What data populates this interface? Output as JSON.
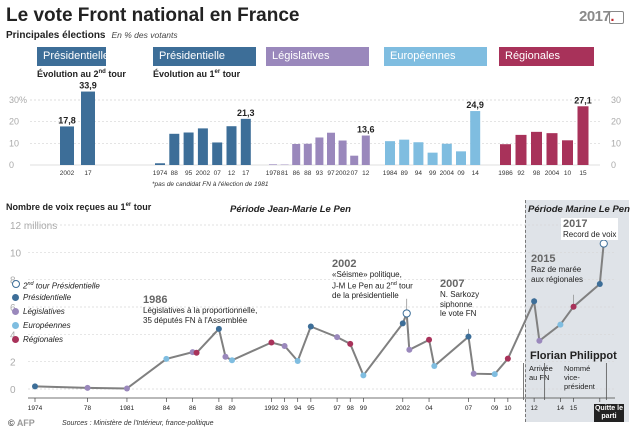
{
  "header": {
    "title": "Le vote Front national en France",
    "subtitle": "Principales élections",
    "unit": "En % des votants",
    "logo": {
      "year": "2017",
      "mark": "."
    }
  },
  "colors": {
    "presidentielle": "#3d6e98",
    "legislatives": "#9a88bc",
    "europeennes": "#7fbde0",
    "regionales": "#a8325a",
    "line": "#777777"
  },
  "panels": {
    "p2": {
      "header": "Présidentielle",
      "sub_a": "Évolution au 2",
      "sub_sup": "nd",
      "sub_b": " tour"
    },
    "p1": {
      "header": "Présidentielle",
      "sub_a": "Évolution au 1",
      "sub_sup": "er",
      "sub_b": " tour"
    },
    "leg": {
      "header": "Législatives"
    },
    "eur": {
      "header": "Européennes"
    },
    "reg": {
      "header": "Régionales"
    },
    "axis_left": [
      "30%",
      "20",
      "10",
      "0"
    ],
    "axis_right": [
      "30",
      "20",
      "10",
      "0"
    ],
    "note": "*pas de candidat FN à l'élection de 1981"
  },
  "lower": {
    "title_a": "Nombre de voix reçues au 1",
    "title_sup": "er",
    "title_b": " tour",
    "period1": "Période Jean-Marie Le Pen",
    "period2": "Période Marine Le Pen",
    "legend": [
      {
        "key": "p2",
        "label": " tour Présidentielle",
        "prefix": "2",
        "sup": "nd"
      },
      {
        "key": "p1",
        "label": "Présidentielle"
      },
      {
        "key": "leg",
        "label": "Législatives"
      },
      {
        "key": "eur",
        "label": "Européennes"
      },
      {
        "key": "reg",
        "label": "Régionales"
      }
    ],
    "annotations": {
      "a1986": {
        "year": "1986",
        "l1": "Législatives à la proportionnelle,",
        "l2": "35 députés FN à l'Assemblée"
      },
      "a2002": {
        "year": "2002",
        "l1": "«Séisme» politique,",
        "l2a": "J-M Le Pen au 2",
        "l2sup": "nd",
        "l2b": " tour",
        "l3": "de la présidentielle"
      },
      "a2007": {
        "year": "2007",
        "l1": "N. Sarkozy",
        "l2": "siphonne",
        "l3": "le vote FN"
      },
      "a2015": {
        "year": "2015",
        "l1": "Raz de marée",
        "l2": "aux régionales"
      },
      "a2017": {
        "year": "2017",
        "l1": "Record de voix"
      }
    },
    "philippot": "Florian Philippot",
    "arrivee": "Arrivée au FN",
    "vice": "Nommé vice-président",
    "quitte": "Quitte le parti"
  },
  "footer": {
    "logo_a": "© ",
    "logo_b": "AFP",
    "sources": "Sources : Ministère de l'Intérieur, france-politique"
  },
  "chart_data": [
    {
      "type": "bar",
      "title": "Présidentielle — Évolution au 2nd tour",
      "categories": [
        "2002",
        "17"
      ],
      "values": [
        17.8,
        33.9
      ],
      "value_labels": [
        "17,8",
        "33,9"
      ],
      "ylim": [
        0,
        35
      ],
      "ylabel": "En % des votants"
    },
    {
      "type": "bar",
      "title": "Présidentielle — Évolution au 1er tour",
      "categories": [
        "1974",
        "88",
        "95",
        "2002",
        "07",
        "12",
        "17"
      ],
      "values": [
        0.8,
        14.4,
        15.0,
        16.9,
        10.4,
        17.9,
        21.3
      ],
      "value_labels": [
        "",
        "",
        "",
        "",
        "",
        "",
        "21,3"
      ],
      "ylim": [
        0,
        35
      ]
    },
    {
      "type": "bar",
      "title": "Législatives",
      "categories": [
        "1978",
        "81",
        "86",
        "88",
        "93",
        "97",
        "2002",
        "07",
        "12"
      ],
      "values": [
        0.3,
        0.2,
        9.7,
        9.8,
        12.7,
        14.9,
        11.3,
        4.3,
        13.6
      ],
      "value_labels": [
        "",
        "",
        "",
        "",
        "",
        "",
        "",
        "",
        "13,6"
      ],
      "ylim": [
        0,
        35
      ]
    },
    {
      "type": "bar",
      "title": "Européennes",
      "categories": [
        "1984",
        "89",
        "94",
        "99",
        "2004",
        "09",
        "14"
      ],
      "values": [
        11.0,
        11.7,
        10.5,
        5.7,
        9.8,
        6.3,
        24.9
      ],
      "value_labels": [
        "",
        "",
        "",
        "",
        "",
        "",
        "24,9"
      ],
      "ylim": [
        0,
        35
      ]
    },
    {
      "type": "bar",
      "title": "Régionales",
      "categories": [
        "1986",
        "92",
        "98",
        "2004",
        "10",
        "15"
      ],
      "values": [
        9.6,
        13.9,
        15.3,
        14.7,
        11.4,
        27.1
      ],
      "value_labels": [
        "",
        "",
        "",
        "",
        "",
        "27,1"
      ],
      "ylim": [
        0,
        35
      ]
    },
    {
      "type": "line",
      "title": "Nombre de voix reçues au 1er tour",
      "ylabel": "millions",
      "ylim": [
        0,
        12
      ],
      "yticks": [
        "12 millions",
        "10",
        "8",
        "6",
        "4",
        "2",
        "0"
      ],
      "xlim": [
        1974,
        2017.7
      ],
      "xticks": [
        [
          1974,
          "1974"
        ],
        [
          1978,
          "78"
        ],
        [
          1981,
          "1981"
        ],
        [
          1984,
          "84"
        ],
        [
          1986,
          "86"
        ],
        [
          1988,
          "88"
        ],
        [
          1989,
          "89"
        ],
        [
          1992,
          "1992"
        ],
        [
          1993,
          "93"
        ],
        [
          1994,
          "94"
        ],
        [
          1995,
          "95"
        ],
        [
          1997,
          "97"
        ],
        [
          1998,
          "98"
        ],
        [
          1999,
          "99"
        ],
        [
          2002,
          "2002"
        ],
        [
          2004,
          "04"
        ],
        [
          2007,
          "07"
        ],
        [
          2009,
          "09"
        ],
        [
          2010,
          "10"
        ],
        [
          2012,
          "12"
        ],
        [
          2014,
          "14"
        ],
        [
          2015,
          "15"
        ],
        [
          2017,
          "17"
        ]
      ],
      "points": [
        {
          "x": 1974,
          "y": 0.19,
          "type": "p1"
        },
        {
          "x": 1978,
          "y": 0.08,
          "type": "leg"
        },
        {
          "x": 1981,
          "y": 0.04,
          "type": "leg"
        },
        {
          "x": 1984,
          "y": 2.2,
          "type": "eur"
        },
        {
          "x": 1986,
          "y": 2.7,
          "type": "leg"
        },
        {
          "x": 1986.3,
          "y": 2.65,
          "type": "reg"
        },
        {
          "x": 1988,
          "y": 4.4,
          "type": "p1"
        },
        {
          "x": 1988.5,
          "y": 2.36,
          "type": "leg"
        },
        {
          "x": 1989,
          "y": 2.1,
          "type": "eur"
        },
        {
          "x": 1992,
          "y": 3.4,
          "type": "reg"
        },
        {
          "x": 1993,
          "y": 3.15,
          "type": "leg"
        },
        {
          "x": 1994,
          "y": 2.05,
          "type": "eur"
        },
        {
          "x": 1995,
          "y": 4.57,
          "type": "p1"
        },
        {
          "x": 1997,
          "y": 3.8,
          "type": "leg"
        },
        {
          "x": 1998,
          "y": 3.3,
          "type": "reg"
        },
        {
          "x": 1999,
          "y": 1.0,
          "type": "eur"
        },
        {
          "x": 2002,
          "y": 4.8,
          "type": "p1"
        },
        {
          "x": 2002.3,
          "y": 5.53,
          "type": "p2"
        },
        {
          "x": 2002.5,
          "y": 2.87,
          "type": "leg"
        },
        {
          "x": 2004,
          "y": 3.6,
          "type": "reg"
        },
        {
          "x": 2004.4,
          "y": 1.68,
          "type": "eur"
        },
        {
          "x": 2007,
          "y": 3.83,
          "type": "p1"
        },
        {
          "x": 2007.4,
          "y": 1.12,
          "type": "leg"
        },
        {
          "x": 2009,
          "y": 1.09,
          "type": "eur"
        },
        {
          "x": 2010,
          "y": 2.22,
          "type": "reg"
        },
        {
          "x": 2012,
          "y": 6.42,
          "type": "p1"
        },
        {
          "x": 2012.4,
          "y": 3.53,
          "type": "leg"
        },
        {
          "x": 2014,
          "y": 4.71,
          "type": "eur"
        },
        {
          "x": 2015,
          "y": 6.02,
          "type": "reg"
        },
        {
          "x": 2017,
          "y": 7.68,
          "type": "p1"
        },
        {
          "x": 2017.3,
          "y": 10.64,
          "type": "p2"
        }
      ],
      "legend": [
        "2nd tour Présidentielle",
        "Présidentielle",
        "Législatives",
        "Européennes",
        "Régionales"
      ]
    }
  ]
}
